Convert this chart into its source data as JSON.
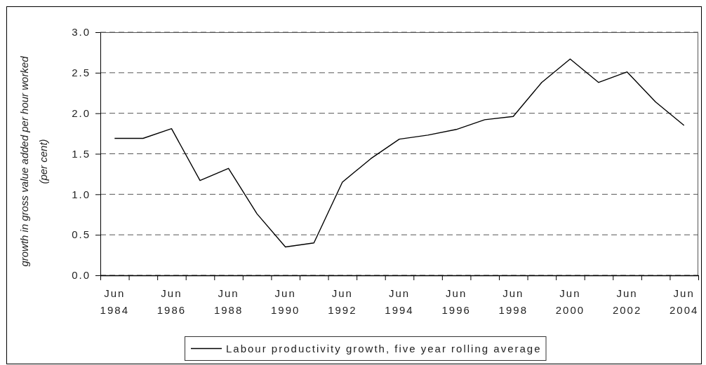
{
  "chart_data": {
    "type": "line",
    "ylabel": "growth in gross value added per hour worked\n(per cent)",
    "categories": [
      "Jun 1984",
      null,
      "Jun 1986",
      null,
      "Jun 1988",
      null,
      "Jun 1990",
      null,
      "Jun 1992",
      null,
      "Jun 1994",
      null,
      "Jun 1996",
      null,
      "Jun 1998",
      null,
      "Jun 2000",
      null,
      "Jun 2002",
      null,
      "Jun 2004"
    ],
    "series": [
      {
        "name": "Labour productivity growth, five year rolling average",
        "color": "#000000",
        "values": [
          1.69,
          1.69,
          1.81,
          1.17,
          1.32,
          0.76,
          0.35,
          0.4,
          1.15,
          1.44,
          1.68,
          1.73,
          1.8,
          1.92,
          1.96,
          2.38,
          2.67,
          2.38,
          2.51,
          2.14,
          1.85
        ]
      }
    ],
    "ylim": [
      0,
      3
    ],
    "yticks": [
      {
        "value": 0,
        "label": "0.0"
      },
      {
        "value": 0.5,
        "label": "0.5"
      },
      {
        "value": 1,
        "label": "1.0"
      },
      {
        "value": 1.5,
        "label": "1.5"
      },
      {
        "value": 2,
        "label": "2.0"
      },
      {
        "value": 2.5,
        "label": "2.5"
      },
      {
        "value": 3,
        "label": "3.0"
      }
    ],
    "grid": "y",
    "legend": "bottom",
    "line_style": "solid"
  }
}
